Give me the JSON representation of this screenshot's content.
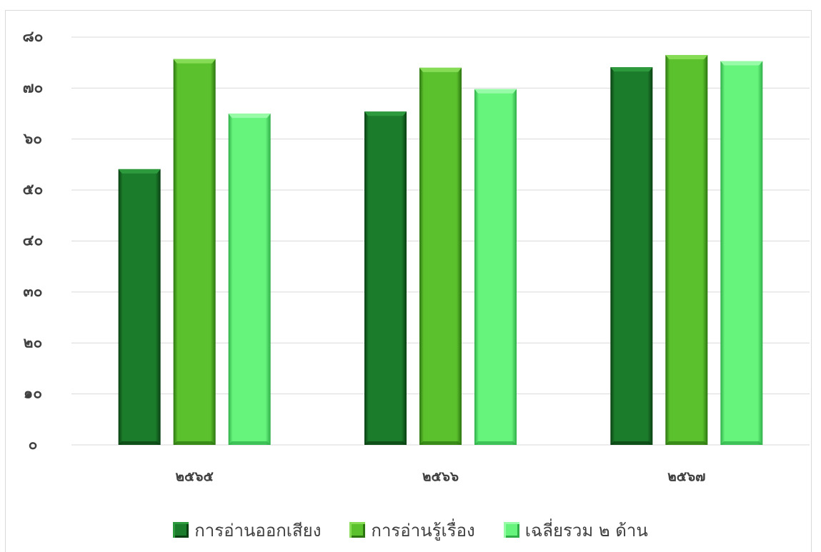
{
  "chart_data": {
    "type": "bar",
    "title": "",
    "xlabel": "",
    "ylabel": "",
    "categories": [
      "๒๕๖๕",
      "๒๕๖๖",
      "๒๕๖๗"
    ],
    "ylim": [
      0,
      80
    ],
    "yticks": [
      0,
      10,
      20,
      30,
      40,
      50,
      60,
      70,
      80
    ],
    "ytick_labels": [
      "๐",
      "๑๐",
      "๒๐",
      "๓๐",
      "๔๐",
      "๕๐",
      "๖๐",
      "๗๐",
      "๘๐"
    ],
    "grid": true,
    "legend": "bottom",
    "series": [
      {
        "name": "การอ่านออกเสียง",
        "values": [
          54.1,
          65.4,
          74.1
        ],
        "color": "#1b7c2b",
        "edge_color": "#0a3f12",
        "highlight_color": "#2e9a3e"
      },
      {
        "name": "การอ่านรู้เรื่อง",
        "values": [
          75.7,
          74.0,
          76.5
        ],
        "color": "#5bc12c",
        "edge_color": "#2c7510",
        "highlight_color": "#86dc55"
      },
      {
        "name": "เฉลี่ยรวม ๒ ด้าน",
        "values": [
          65.0,
          69.8,
          75.3
        ],
        "color": "#66f47c",
        "edge_color": "#2fae48",
        "highlight_color": "#98fba7"
      }
    ]
  }
}
